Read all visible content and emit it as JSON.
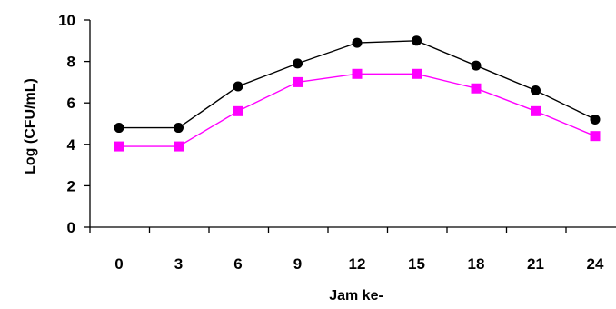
{
  "chart_data": {
    "type": "line",
    "title": "",
    "xlabel": "Jam ke-",
    "ylabel": "Log (CFU/mL)",
    "x": [
      0,
      3,
      6,
      9,
      12,
      15,
      18,
      21,
      24
    ],
    "x_tick_labels": [
      "0",
      "3",
      "6",
      "9",
      "12",
      "15",
      "18",
      "21",
      "24"
    ],
    "y_ticks": [
      0,
      2,
      4,
      6,
      8,
      10
    ],
    "y_tick_labels": [
      "0",
      "2",
      "4",
      "6",
      "8",
      "10"
    ],
    "ylim": [
      0,
      10
    ],
    "grid": false,
    "legend": "none",
    "series": [
      {
        "color": "#000000",
        "marker": "circle",
        "values": [
          4.8,
          4.8,
          6.8,
          7.9,
          8.9,
          9.0,
          7.8,
          6.6,
          5.2
        ]
      },
      {
        "color": "#ff00ff",
        "marker": "square",
        "values": [
          3.9,
          3.9,
          5.6,
          7.0,
          7.4,
          7.4,
          6.7,
          5.6,
          4.4
        ]
      }
    ]
  }
}
